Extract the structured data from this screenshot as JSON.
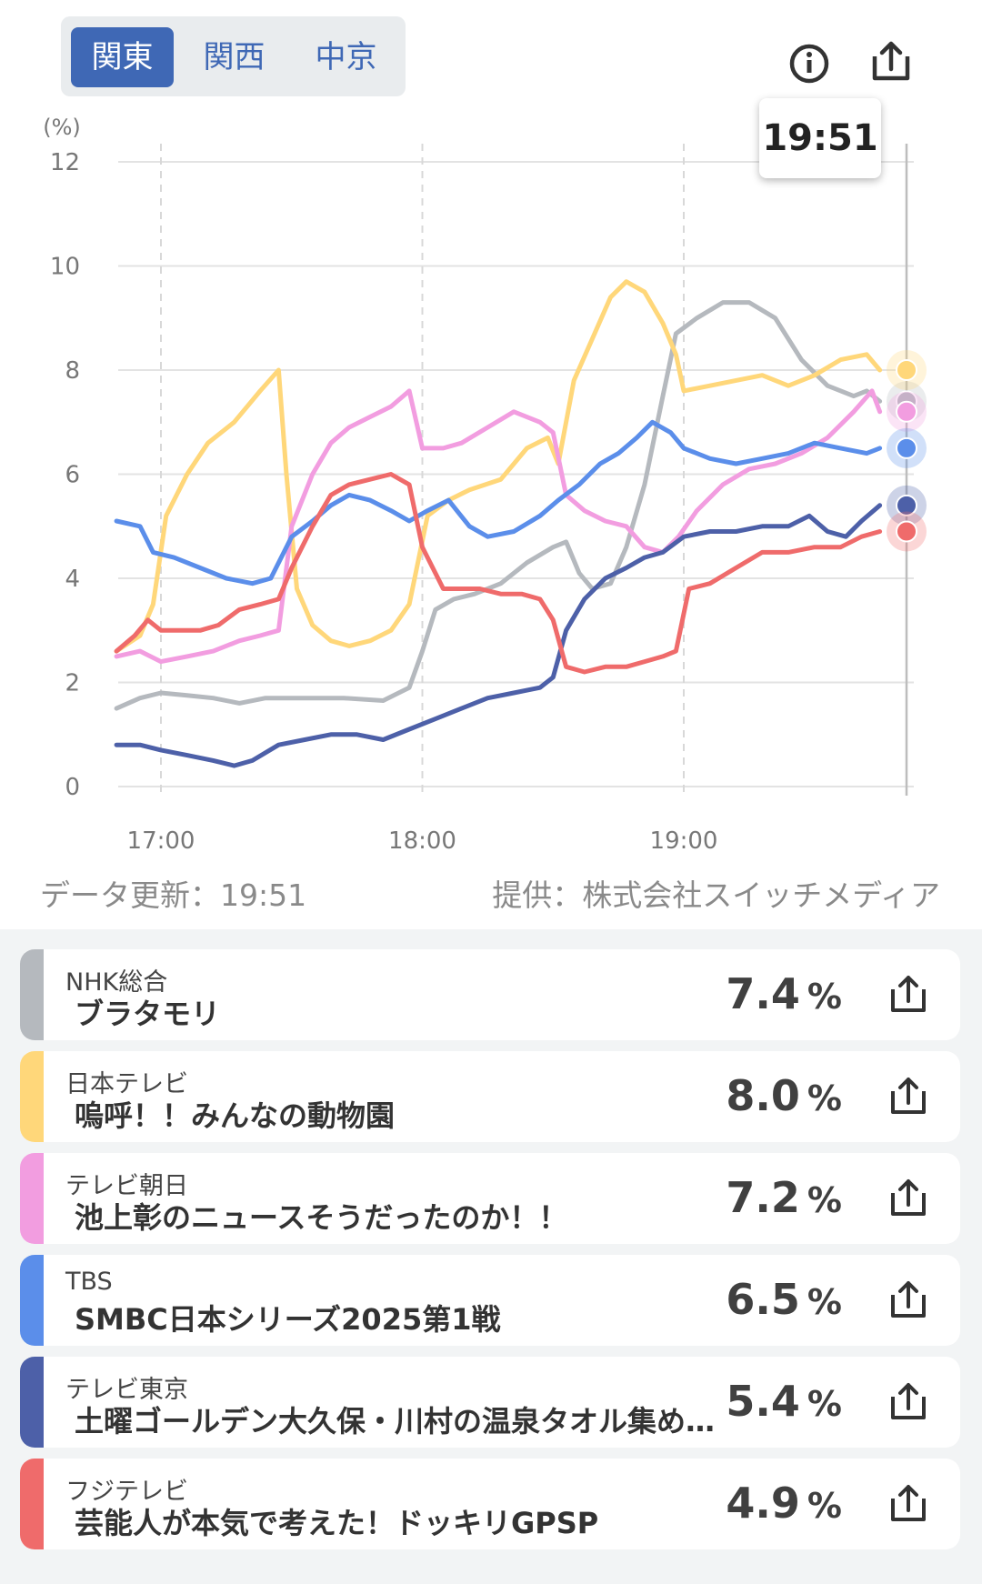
{
  "tabs": [
    {
      "label": "関東",
      "active": true
    },
    {
      "label": "関西",
      "active": false
    },
    {
      "label": "中京",
      "active": false
    }
  ],
  "header": {
    "info_icon": "info-circle-icon",
    "share_icon": "share-icon",
    "tooltip_time": "19:51"
  },
  "chart_data": {
    "type": "line",
    "ylabel": "(%)",
    "ylim": [
      0,
      12
    ],
    "yticks": [
      "0",
      "2",
      "4",
      "6",
      "8",
      "10",
      "12"
    ],
    "xticks": [
      "17:00",
      "18:00",
      "19:00"
    ],
    "grid": true,
    "series": [
      {
        "name": "NHK総合",
        "color": "#b5b9be",
        "points": [
          [
            16.83,
            1.5
          ],
          [
            16.92,
            1.7
          ],
          [
            17.0,
            1.8
          ],
          [
            17.1,
            1.75
          ],
          [
            17.2,
            1.7
          ],
          [
            17.3,
            1.6
          ],
          [
            17.4,
            1.7
          ],
          [
            17.55,
            1.7
          ],
          [
            17.7,
            1.7
          ],
          [
            17.85,
            1.65
          ],
          [
            17.95,
            1.9
          ],
          [
            18.0,
            2.6
          ],
          [
            18.05,
            3.4
          ],
          [
            18.12,
            3.6
          ],
          [
            18.2,
            3.7
          ],
          [
            18.3,
            3.9
          ],
          [
            18.4,
            4.3
          ],
          [
            18.5,
            4.6
          ],
          [
            18.55,
            4.7
          ],
          [
            18.6,
            4.1
          ],
          [
            18.65,
            3.8
          ],
          [
            18.72,
            3.9
          ],
          [
            18.78,
            4.6
          ],
          [
            18.85,
            5.8
          ],
          [
            18.92,
            7.5
          ],
          [
            18.97,
            8.7
          ],
          [
            19.05,
            9.0
          ],
          [
            19.15,
            9.3
          ],
          [
            19.25,
            9.3
          ],
          [
            19.35,
            9.0
          ],
          [
            19.45,
            8.2
          ],
          [
            19.55,
            7.7
          ],
          [
            19.65,
            7.5
          ],
          [
            19.7,
            7.6
          ],
          [
            19.75,
            7.4
          ]
        ]
      },
      {
        "name": "日本テレビ",
        "color": "#ffd77a",
        "points": [
          [
            16.83,
            2.6
          ],
          [
            16.92,
            2.9
          ],
          [
            16.97,
            3.5
          ],
          [
            17.02,
            5.2
          ],
          [
            17.1,
            6.0
          ],
          [
            17.18,
            6.6
          ],
          [
            17.28,
            7.0
          ],
          [
            17.38,
            7.6
          ],
          [
            17.45,
            8.0
          ],
          [
            17.48,
            6.0
          ],
          [
            17.52,
            3.8
          ],
          [
            17.58,
            3.1
          ],
          [
            17.65,
            2.8
          ],
          [
            17.72,
            2.7
          ],
          [
            17.8,
            2.8
          ],
          [
            17.88,
            3.0
          ],
          [
            17.95,
            3.5
          ],
          [
            18.02,
            5.2
          ],
          [
            18.1,
            5.5
          ],
          [
            18.18,
            5.7
          ],
          [
            18.3,
            5.9
          ],
          [
            18.4,
            6.5
          ],
          [
            18.48,
            6.7
          ],
          [
            18.52,
            6.2
          ],
          [
            18.58,
            7.8
          ],
          [
            18.65,
            8.6
          ],
          [
            18.72,
            9.4
          ],
          [
            18.78,
            9.7
          ],
          [
            18.85,
            9.5
          ],
          [
            18.92,
            8.9
          ],
          [
            18.97,
            8.3
          ],
          [
            19.0,
            7.6
          ],
          [
            19.1,
            7.7
          ],
          [
            19.2,
            7.8
          ],
          [
            19.3,
            7.9
          ],
          [
            19.4,
            7.7
          ],
          [
            19.5,
            7.9
          ],
          [
            19.6,
            8.2
          ],
          [
            19.7,
            8.3
          ],
          [
            19.75,
            8.0
          ]
        ]
      },
      {
        "name": "テレビ朝日",
        "color": "#f29de0",
        "points": [
          [
            16.83,
            2.5
          ],
          [
            16.92,
            2.6
          ],
          [
            17.0,
            2.4
          ],
          [
            17.1,
            2.5
          ],
          [
            17.2,
            2.6
          ],
          [
            17.3,
            2.8
          ],
          [
            17.38,
            2.9
          ],
          [
            17.45,
            3.0
          ],
          [
            17.5,
            5.0
          ],
          [
            17.58,
            6.0
          ],
          [
            17.65,
            6.6
          ],
          [
            17.72,
            6.9
          ],
          [
            17.8,
            7.1
          ],
          [
            17.88,
            7.3
          ],
          [
            17.95,
            7.6
          ],
          [
            18.0,
            6.5
          ],
          [
            18.08,
            6.5
          ],
          [
            18.15,
            6.6
          ],
          [
            18.25,
            6.9
          ],
          [
            18.35,
            7.2
          ],
          [
            18.45,
            7.0
          ],
          [
            18.5,
            6.8
          ],
          [
            18.55,
            5.6
          ],
          [
            18.62,
            5.3
          ],
          [
            18.7,
            5.1
          ],
          [
            18.78,
            5.0
          ],
          [
            18.85,
            4.6
          ],
          [
            18.92,
            4.5
          ],
          [
            18.98,
            4.8
          ],
          [
            19.05,
            5.3
          ],
          [
            19.15,
            5.8
          ],
          [
            19.25,
            6.1
          ],
          [
            19.35,
            6.2
          ],
          [
            19.45,
            6.4
          ],
          [
            19.55,
            6.7
          ],
          [
            19.65,
            7.2
          ],
          [
            19.72,
            7.6
          ],
          [
            19.75,
            7.2
          ]
        ]
      },
      {
        "name": "TBS",
        "color": "#5b8eea",
        "points": [
          [
            16.83,
            5.1
          ],
          [
            16.92,
            5.0
          ],
          [
            16.97,
            4.5
          ],
          [
            17.05,
            4.4
          ],
          [
            17.15,
            4.2
          ],
          [
            17.25,
            4.0
          ],
          [
            17.35,
            3.9
          ],
          [
            17.42,
            4.0
          ],
          [
            17.5,
            4.8
          ],
          [
            17.58,
            5.1
          ],
          [
            17.65,
            5.4
          ],
          [
            17.72,
            5.6
          ],
          [
            17.8,
            5.5
          ],
          [
            17.88,
            5.3
          ],
          [
            17.95,
            5.1
          ],
          [
            18.02,
            5.3
          ],
          [
            18.1,
            5.5
          ],
          [
            18.18,
            5.0
          ],
          [
            18.25,
            4.8
          ],
          [
            18.35,
            4.9
          ],
          [
            18.45,
            5.2
          ],
          [
            18.52,
            5.5
          ],
          [
            18.6,
            5.8
          ],
          [
            18.68,
            6.2
          ],
          [
            18.75,
            6.4
          ],
          [
            18.82,
            6.7
          ],
          [
            18.88,
            7.0
          ],
          [
            18.95,
            6.8
          ],
          [
            19.0,
            6.5
          ],
          [
            19.1,
            6.3
          ],
          [
            19.2,
            6.2
          ],
          [
            19.3,
            6.3
          ],
          [
            19.4,
            6.4
          ],
          [
            19.5,
            6.6
          ],
          [
            19.6,
            6.5
          ],
          [
            19.7,
            6.4
          ],
          [
            19.75,
            6.5
          ]
        ]
      },
      {
        "name": "テレビ東京",
        "color": "#4d60a8",
        "points": [
          [
            16.83,
            0.8
          ],
          [
            16.92,
            0.8
          ],
          [
            17.0,
            0.7
          ],
          [
            17.1,
            0.6
          ],
          [
            17.2,
            0.5
          ],
          [
            17.28,
            0.4
          ],
          [
            17.35,
            0.5
          ],
          [
            17.45,
            0.8
          ],
          [
            17.55,
            0.9
          ],
          [
            17.65,
            1.0
          ],
          [
            17.75,
            1.0
          ],
          [
            17.85,
            0.9
          ],
          [
            17.95,
            1.1
          ],
          [
            18.05,
            1.3
          ],
          [
            18.15,
            1.5
          ],
          [
            18.25,
            1.7
          ],
          [
            18.35,
            1.8
          ],
          [
            18.45,
            1.9
          ],
          [
            18.5,
            2.1
          ],
          [
            18.55,
            3.0
          ],
          [
            18.62,
            3.6
          ],
          [
            18.7,
            4.0
          ],
          [
            18.78,
            4.2
          ],
          [
            18.85,
            4.4
          ],
          [
            18.92,
            4.5
          ],
          [
            19.0,
            4.8
          ],
          [
            19.1,
            4.9
          ],
          [
            19.2,
            4.9
          ],
          [
            19.3,
            5.0
          ],
          [
            19.4,
            5.0
          ],
          [
            19.48,
            5.2
          ],
          [
            19.55,
            4.9
          ],
          [
            19.62,
            4.8
          ],
          [
            19.68,
            5.1
          ],
          [
            19.75,
            5.4
          ]
        ]
      },
      {
        "name": "フジテレビ",
        "color": "#ef6b6b",
        "points": [
          [
            16.83,
            2.6
          ],
          [
            16.9,
            2.9
          ],
          [
            16.95,
            3.2
          ],
          [
            17.0,
            3.0
          ],
          [
            17.08,
            3.0
          ],
          [
            17.15,
            3.0
          ],
          [
            17.22,
            3.1
          ],
          [
            17.3,
            3.4
          ],
          [
            17.38,
            3.5
          ],
          [
            17.45,
            3.6
          ],
          [
            17.5,
            4.2
          ],
          [
            17.58,
            5.0
          ],
          [
            17.65,
            5.6
          ],
          [
            17.72,
            5.8
          ],
          [
            17.8,
            5.9
          ],
          [
            17.88,
            6.0
          ],
          [
            17.95,
            5.8
          ],
          [
            18.0,
            4.6
          ],
          [
            18.08,
            3.8
          ],
          [
            18.15,
            3.8
          ],
          [
            18.22,
            3.8
          ],
          [
            18.3,
            3.7
          ],
          [
            18.38,
            3.7
          ],
          [
            18.45,
            3.6
          ],
          [
            18.5,
            3.2
          ],
          [
            18.55,
            2.3
          ],
          [
            18.62,
            2.2
          ],
          [
            18.7,
            2.3
          ],
          [
            18.78,
            2.3
          ],
          [
            18.85,
            2.4
          ],
          [
            18.92,
            2.5
          ],
          [
            18.97,
            2.6
          ],
          [
            19.02,
            3.8
          ],
          [
            19.1,
            3.9
          ],
          [
            19.2,
            4.2
          ],
          [
            19.3,
            4.5
          ],
          [
            19.4,
            4.5
          ],
          [
            19.5,
            4.6
          ],
          [
            19.6,
            4.6
          ],
          [
            19.68,
            4.8
          ],
          [
            19.75,
            4.9
          ]
        ]
      }
    ]
  },
  "footer": {
    "updated": "データ更新：19:51",
    "provider": "提供：株式会社スイッチメディア"
  },
  "rankings": [
    {
      "channel": "NHK総合",
      "program": "ブラタモリ",
      "rate": "7.4",
      "unit": "%",
      "color": "#b5b9be"
    },
    {
      "channel": "日本テレビ",
      "program": "嗚呼！！みんなの動物園",
      "rate": "8.0",
      "unit": "%",
      "color": "#ffd77a"
    },
    {
      "channel": "テレビ朝日",
      "program": "池上彰のニュースそうだったのか！！",
      "rate": "7.2",
      "unit": "%",
      "color": "#f29de0"
    },
    {
      "channel": "TBS",
      "program": "SMBC日本シリーズ2025第1戦",
      "rate": "6.5",
      "unit": "%",
      "color": "#5b8eea"
    },
    {
      "channel": "テレビ東京",
      "program": "土曜ゴールデン大久保・川村の温泉タオル集め…",
      "rate": "5.4",
      "unit": "%",
      "color": "#4d60a8"
    },
    {
      "channel": "フジテレビ",
      "program": "芸能人が本気で考えた！ドッキリGPSP",
      "rate": "4.9",
      "unit": "%",
      "color": "#ef6b6b"
    }
  ]
}
